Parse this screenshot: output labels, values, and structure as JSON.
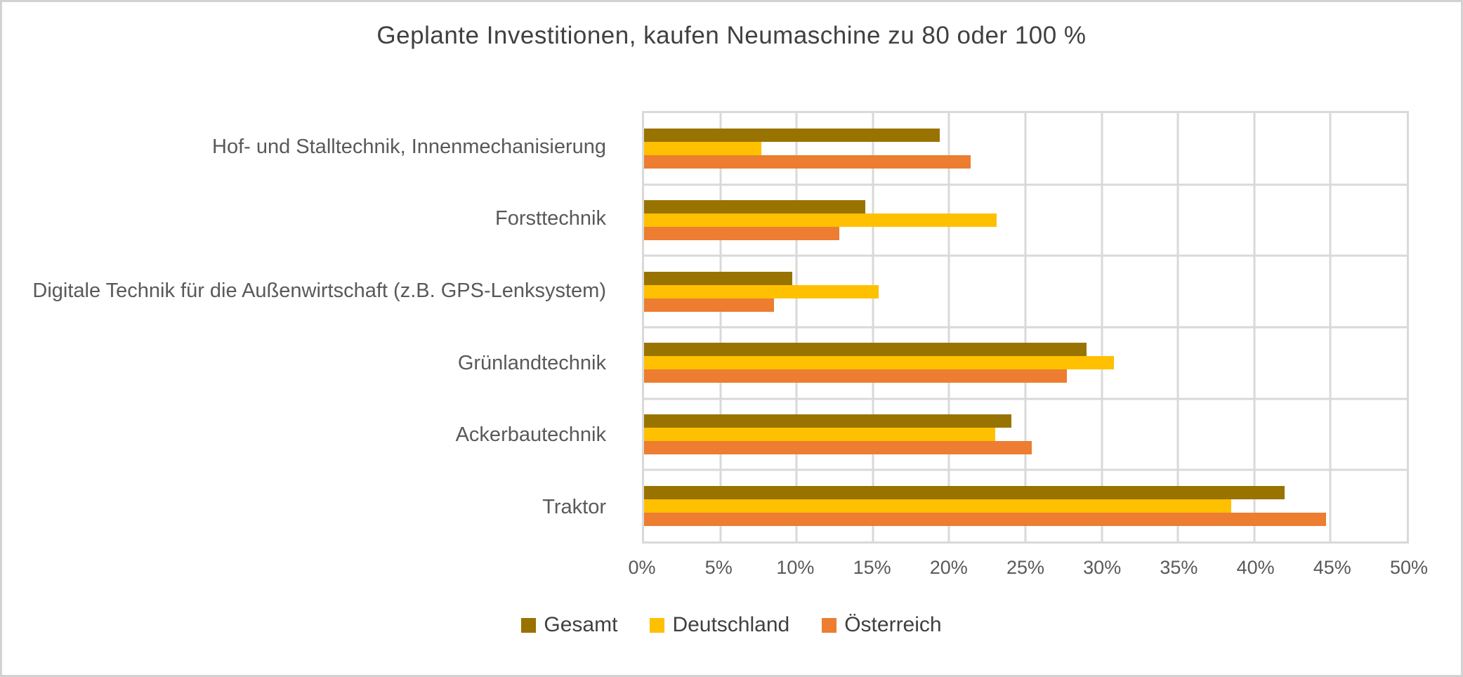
{
  "chart_title": "Geplante Investitionen, kaufen Neumaschine zu 80 oder 100 %",
  "chart_data": {
    "type": "bar",
    "orientation": "horizontal",
    "title": "Geplante Investitionen, kaufen Neumaschine zu 80 oder 100 %",
    "categories": [
      "Hof- und Stalltechnik, Innenmechanisierung",
      "Forsttechnik",
      "Digitale Technik für die Außenwirtschaft (z.B. GPS-Lenksystem)",
      "Grünlandtechnik",
      "Ackerbautechnik",
      "Traktor"
    ],
    "series": [
      {
        "name": "Gesamt",
        "color": "#997300",
        "values": [
          19.4,
          14.5,
          9.7,
          29.0,
          24.1,
          42.0
        ]
      },
      {
        "name": "Deutschland",
        "color": "#FFC000",
        "values": [
          7.7,
          23.1,
          15.4,
          30.8,
          23.0,
          38.5
        ]
      },
      {
        "name": "Österreich",
        "color": "#ED7D31",
        "values": [
          21.4,
          12.8,
          8.5,
          27.7,
          25.4,
          44.7
        ]
      }
    ],
    "x_axis": {
      "min": 0,
      "max": 50,
      "unit": "%",
      "ticks": [
        "0%",
        "5%",
        "10%",
        "15%",
        "20%",
        "25%",
        "30%",
        "35%",
        "40%",
        "45%",
        "50%"
      ]
    },
    "legend": {
      "position": "bottom",
      "entries": [
        "Gesamt",
        "Deutschland",
        "Österreich"
      ]
    },
    "grid": true,
    "colors": {
      "title_text": "#404040",
      "axis_text": "#595959",
      "gridline": "#d9d9d9",
      "background": "#ffffff"
    }
  }
}
